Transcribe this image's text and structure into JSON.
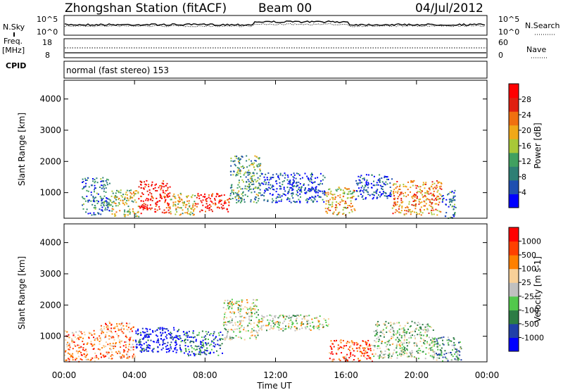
{
  "header": {
    "station": "Zhongshan Station (fitACF)",
    "beam": "Beam 00",
    "date": "04/Jul/2012"
  },
  "top_panels": {
    "noise": {
      "left_label": "N.Sky",
      "right_label": "N.Search",
      "tick_high": "10^5",
      "tick_low": "10^0"
    },
    "freq": {
      "left_label_1": "Freq.",
      "left_label_2": "[MHz]",
      "tick_high": "18",
      "tick_low": "8",
      "right_label": "Nave",
      "right_tick_high": "60",
      "right_tick_low": "0"
    },
    "cpid": {
      "label": "CPID",
      "value": "normal (fast stereo) 153"
    }
  },
  "chart_data": [
    {
      "type": "heatmap",
      "name": "power-panel",
      "x_label": "Time UT",
      "y_label": "Slant Range [km]",
      "x_ticks": [
        "00:00",
        "04:00",
        "08:00",
        "12:00",
        "16:00",
        "20:00",
        "00:00"
      ],
      "y_ticks": [
        "1000",
        "2000",
        "3000",
        "4000"
      ],
      "ylim": [
        180,
        4600
      ],
      "colorbar": {
        "label": "Power [dB]",
        "ticks": [
          "4",
          "8",
          "12",
          "16",
          "20",
          "24",
          "28"
        ],
        "colors": [
          "#0000ff",
          "#1f4fb0",
          "#2d7f74",
          "#40a060",
          "#a8c838",
          "#f0a818",
          "#f07010",
          "#e02010",
          "#ff0000"
        ]
      },
      "regions": [
        {
          "t": [
            1.0,
            2.6
          ],
          "r": [
            300,
            1500
          ],
          "level": 0.25
        },
        {
          "t": [
            2.6,
            4.2
          ],
          "r": [
            250,
            1100
          ],
          "level": 0.5
        },
        {
          "t": [
            4.2,
            6.0
          ],
          "r": [
            350,
            1400
          ],
          "level": 0.9
        },
        {
          "t": [
            6.0,
            7.4
          ],
          "r": [
            300,
            1000
          ],
          "level": 0.55
        },
        {
          "t": [
            7.4,
            9.4
          ],
          "r": [
            400,
            1000
          ],
          "level": 0.95
        },
        {
          "t": [
            9.4,
            11.2
          ],
          "r": [
            700,
            2200
          ],
          "level": 0.35
        },
        {
          "t": [
            11.2,
            14.8
          ],
          "r": [
            700,
            1650
          ],
          "level": 0.15
        },
        {
          "t": [
            14.8,
            16.5
          ],
          "r": [
            300,
            1200
          ],
          "level": 0.6
        },
        {
          "t": [
            16.5,
            18.6
          ],
          "r": [
            800,
            1600
          ],
          "level": 0.15
        },
        {
          "t": [
            18.6,
            21.4
          ],
          "r": [
            300,
            1400
          ],
          "level": 0.7
        },
        {
          "t": [
            21.4,
            22.2
          ],
          "r": [
            200,
            1100
          ],
          "level": 0.25
        }
      ]
    },
    {
      "type": "heatmap",
      "name": "velocity-panel",
      "x_label": "Time UT",
      "y_label": "Slant Range [km]",
      "x_ticks": [
        "00:00",
        "04:00",
        "08:00",
        "12:00",
        "16:00",
        "20:00",
        "00:00"
      ],
      "y_ticks": [
        "1000",
        "2000",
        "3000",
        "4000"
      ],
      "ylim": [
        180,
        4600
      ],
      "colorbar": {
        "label": "Velocity [m s-1]",
        "ticks": [
          "1000",
          "500",
          "100",
          "25",
          "-25",
          "-100",
          "-500",
          "-1000"
        ],
        "colors": [
          "#0000ff",
          "#2040a8",
          "#2c7c44",
          "#52c84c",
          "#c0c0c0",
          "#f8d098",
          "#ff8000",
          "#ff4000",
          "#ff0000"
        ]
      },
      "regions": [
        {
          "t": [
            0.0,
            2.0
          ],
          "r": [
            200,
            1200
          ],
          "level": 0.75
        },
        {
          "t": [
            2.0,
            4.0
          ],
          "r": [
            300,
            1500
          ],
          "level": 0.7
        },
        {
          "t": [
            4.0,
            6.5
          ],
          "r": [
            500,
            1300
          ],
          "level": 0.05
        },
        {
          "t": [
            6.5,
            9.0
          ],
          "r": [
            400,
            1200
          ],
          "level": 0.2
        },
        {
          "t": [
            9.0,
            11.0
          ],
          "r": [
            900,
            2200
          ],
          "level": 0.5
        },
        {
          "t": [
            11.0,
            15.0
          ],
          "r": [
            1200,
            1700
          ],
          "level": 0.5
        },
        {
          "t": [
            15.0,
            17.5
          ],
          "r": [
            200,
            900
          ],
          "level": 0.8
        },
        {
          "t": [
            17.5,
            21.0
          ],
          "r": [
            300,
            1500
          ],
          "level": 0.45
        },
        {
          "t": [
            21.0,
            22.5
          ],
          "r": [
            200,
            1000
          ],
          "level": 0.35
        }
      ]
    }
  ]
}
